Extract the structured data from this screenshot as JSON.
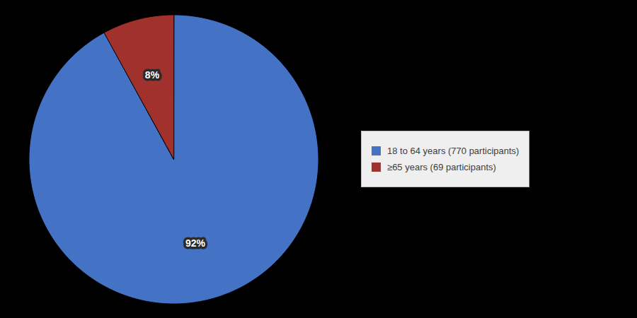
{
  "chart_data": {
    "type": "pie",
    "categories": [
      "18 to 64 years (770 participants)",
      "≥65 years (69 participants)"
    ],
    "values": [
      92,
      8
    ],
    "value_labels": [
      "92%",
      "8%"
    ],
    "data_labels": true,
    "colors": [
      "#4472C4",
      "#A0312D"
    ],
    "legend": "right"
  }
}
